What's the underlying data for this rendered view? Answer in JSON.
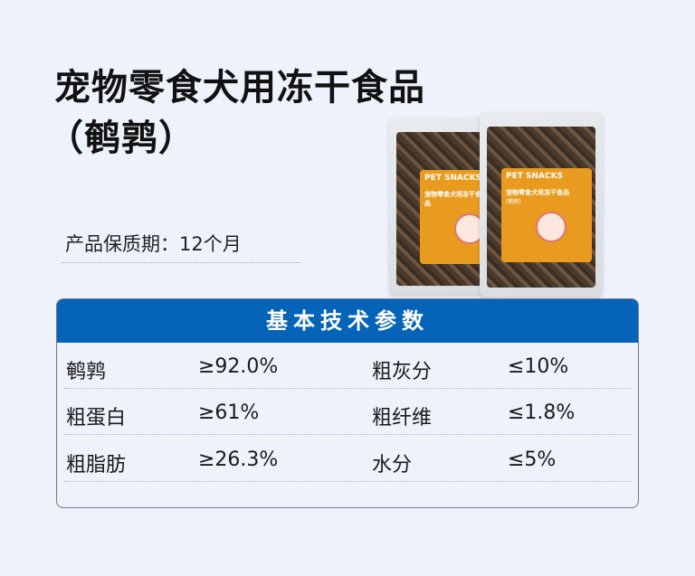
{
  "title": {
    "line1": "宠物零食犬用冻干食品",
    "line2": "（鹌鹑）"
  },
  "shelf_life": "产品保质期：12个月",
  "product_image": {
    "brand": "PET SNACKS",
    "name": "宠物零食犬用冻干食品",
    "variant": "(鹌鹑)",
    "label_color": "#e89b1f"
  },
  "table": {
    "header": "基本技术参数",
    "header_color": "#0563b8",
    "rows": [
      {
        "k1": "鹌鹑",
        "v1": "≥92.0%",
        "k2": "粗灰分",
        "v2": "≤10%"
      },
      {
        "k1": "粗蛋白",
        "v1": "≥61%",
        "k2": "粗纤维",
        "v2": "≤1.8%"
      },
      {
        "k1": "粗脂肪",
        "v1": "≥26.3%",
        "k2": "水分",
        "v2": "≤5%"
      }
    ]
  }
}
